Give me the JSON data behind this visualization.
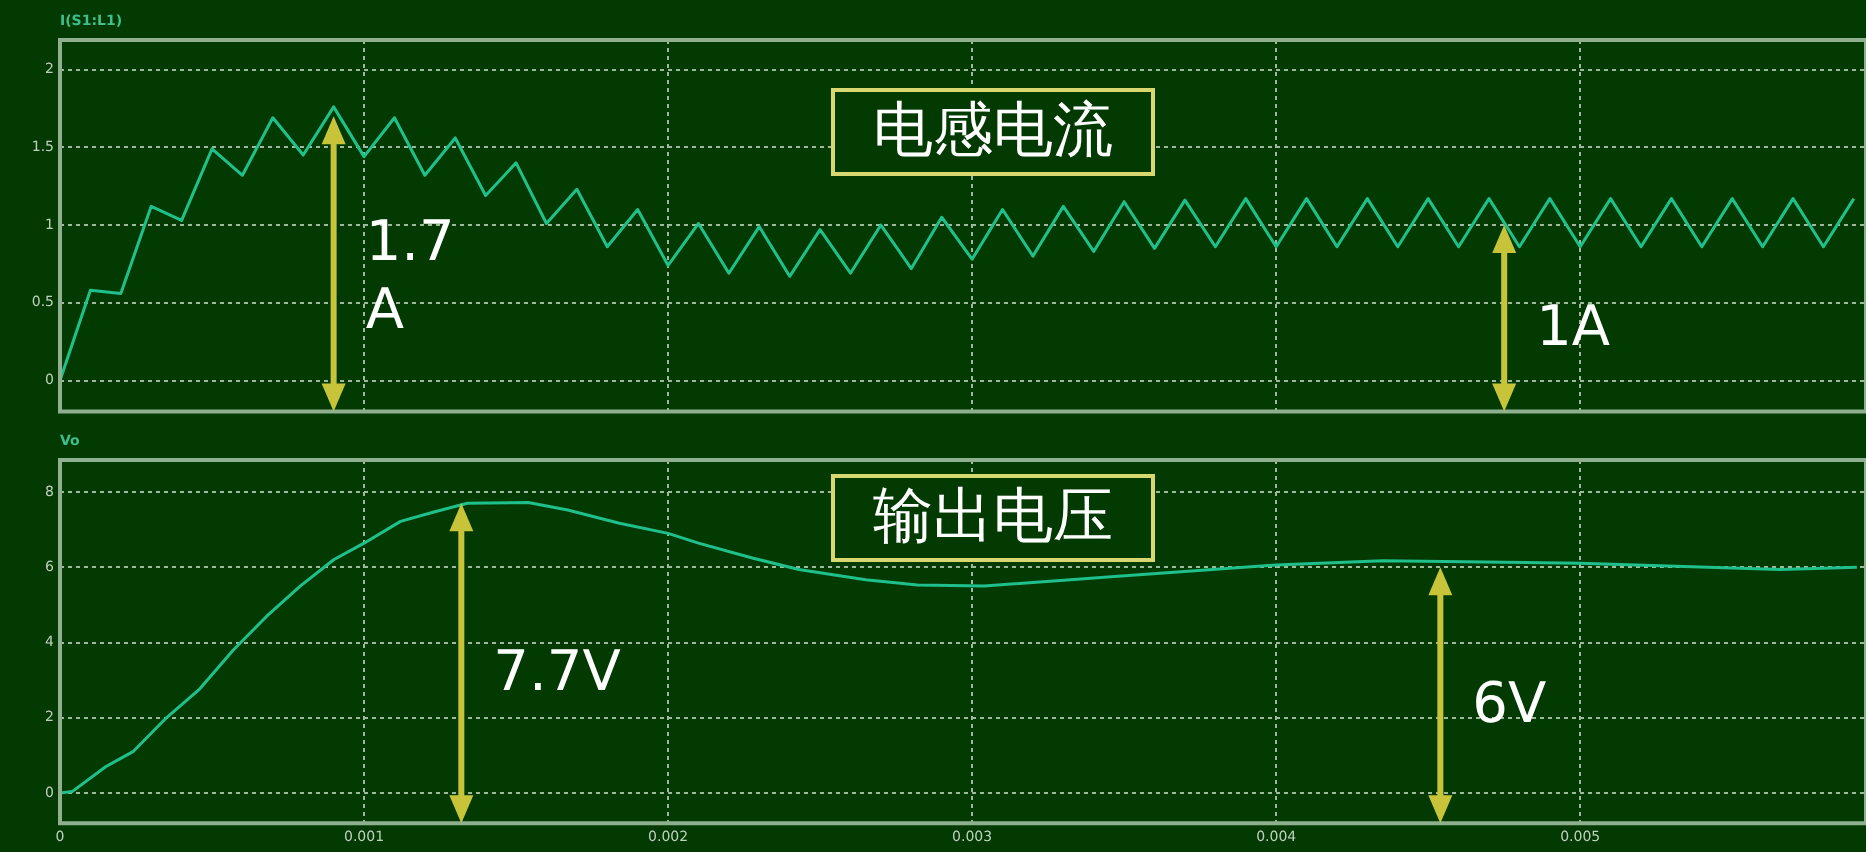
{
  "chart_data": [
    {
      "type": "line",
      "title": "电感电流",
      "ylabel": "I(S1:L1)",
      "xlim": [
        0,
        0.00594
      ],
      "xticks": [
        0,
        0.001,
        0.002,
        0.003,
        0.004,
        0.005
      ],
      "ylim": [
        -0.2,
        2.19
      ],
      "yticks": [
        0,
        0.5,
        1,
        1.5,
        2
      ],
      "grid": true,
      "legend": false,
      "tick_labels": "y",
      "marker": "none",
      "line_style": "solid",
      "x": [
        0,
        0.0001,
        0.0002,
        0.0003,
        0.0004,
        0.0005,
        0.0006,
        0.0007,
        0.0008,
        0.0009,
        0.001,
        0.0011,
        0.0012,
        0.0013,
        0.0014,
        0.0015,
        0.0016,
        0.0017,
        0.0018,
        0.0019,
        0.002,
        0.0021,
        0.0022,
        0.0023,
        0.0024,
        0.0025,
        0.0026,
        0.0027,
        0.0028,
        0.0029,
        0.003,
        0.0031,
        0.0032,
        0.0033,
        0.0034,
        0.0035,
        0.0036,
        0.0037,
        0.0038,
        0.0039,
        0.004,
        0.0041,
        0.0042,
        0.0043,
        0.0044,
        0.0045,
        0.0046,
        0.0047,
        0.0048,
        0.0049,
        0.005,
        0.0051,
        0.0052,
        0.0053,
        0.0054,
        0.0055,
        0.0056,
        0.0057,
        0.0058,
        0.0059
      ],
      "series": [
        {
          "color": "#20c08c",
          "values": [
            0,
            0.58,
            0.56,
            1.12,
            1.03,
            1.49,
            1.32,
            1.69,
            1.45,
            1.76,
            1.44,
            1.69,
            1.32,
            1.56,
            1.19,
            1.4,
            1.01,
            1.23,
            0.86,
            1.1,
            0.74,
            1.01,
            0.69,
            0.99,
            0.67,
            0.97,
            0.69,
            1.0,
            0.72,
            1.05,
            0.78,
            1.1,
            0.8,
            1.12,
            0.83,
            1.15,
            0.85,
            1.16,
            0.86,
            1.17,
            0.86,
            1.17,
            0.86,
            1.17,
            0.86,
            1.17,
            0.86,
            1.17,
            0.86,
            1.17,
            0.86,
            1.17,
            0.86,
            1.17,
            0.86,
            1.17,
            0.86,
            1.17,
            0.86,
            1.17
          ]
        }
      ],
      "annotations": [
        {
          "text": "1.7 A",
          "x": 0.0009,
          "y": 1.7
        },
        {
          "text": "1A",
          "x": 0.00475,
          "y": 1
        }
      ]
    },
    {
      "type": "line",
      "title": "输出电压",
      "ylabel": "Vo",
      "xlim": [
        0,
        0.00594
      ],
      "xticks": [
        0,
        0.001,
        0.002,
        0.003,
        0.004,
        0.005
      ],
      "ylim": [
        -0.8,
        8.85
      ],
      "yticks": [
        0,
        2,
        4,
        6,
        8
      ],
      "grid": true,
      "legend": false,
      "marker": "none",
      "line_style": "solid",
      "x": [
        0,
        4e-05,
        0.00015,
        0.00024,
        0.00035,
        0.00046,
        0.00057,
        0.00068,
        0.00079,
        0.0009,
        0.001,
        0.00112,
        0.00123,
        0.00134,
        0.00154,
        0.00167,
        0.00184,
        0.002,
        0.0021,
        0.00228,
        0.00243,
        0.00265,
        0.00282,
        0.00304,
        0.00348,
        0.004,
        0.00435,
        0.005,
        0.00566,
        0.00591
      ],
      "series": [
        {
          "color": "#20c08c",
          "values": [
            0,
            0.04,
            0.7,
            1.1,
            2.0,
            2.77,
            3.8,
            4.7,
            5.5,
            6.2,
            6.64,
            7.22,
            7.47,
            7.7,
            7.72,
            7.52,
            7.17,
            6.9,
            6.64,
            6.24,
            5.94,
            5.67,
            5.53,
            5.5,
            5.76,
            6.06,
            6.17,
            6.11,
            5.94,
            6.0
          ]
        }
      ],
      "annotations": [
        {
          "text": "7.7V",
          "x": 0.00132,
          "y": 7.7
        },
        {
          "text": "6V",
          "x": 0.00454,
          "y": 6
        }
      ]
    }
  ]
}
